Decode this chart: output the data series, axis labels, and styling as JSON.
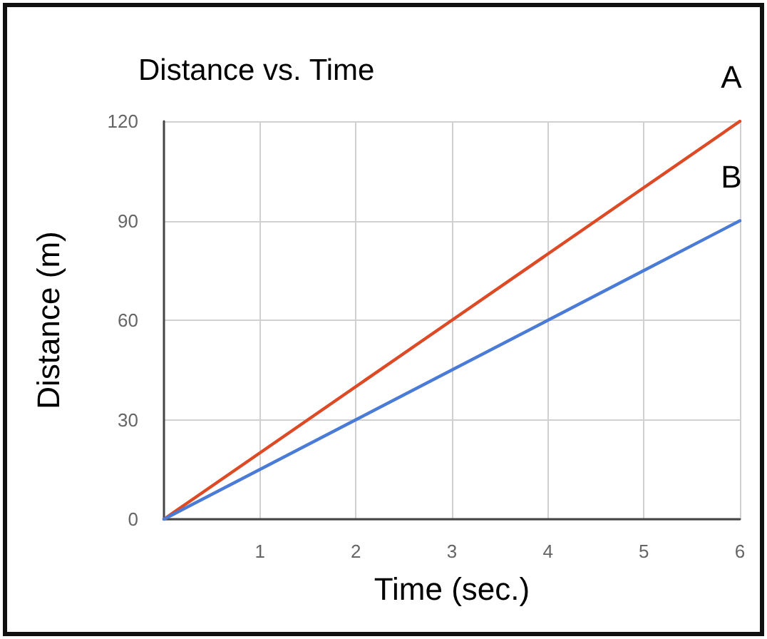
{
  "chart_data": {
    "type": "line",
    "title": "Distance vs. Time",
    "xlabel": "Time (sec.)",
    "ylabel": "Distance (m)",
    "x": [
      0,
      1,
      2,
      3,
      4,
      5,
      6
    ],
    "series": [
      {
        "name": "A",
        "color": "#dc4a26",
        "values": [
          0,
          20,
          40,
          60,
          80,
          100,
          120
        ]
      },
      {
        "name": "B",
        "color": "#4a7bd6",
        "values": [
          0,
          15,
          30,
          45,
          60,
          75,
          90
        ]
      }
    ],
    "xlim": [
      0,
      6
    ],
    "xticks": [
      1,
      2,
      3,
      4,
      5,
      6
    ],
    "ylim": [
      0,
      120
    ],
    "yticks": [
      0,
      30,
      60,
      90,
      120
    ],
    "grid": true,
    "legend": false,
    "marker": "none",
    "line_style": "solid"
  }
}
